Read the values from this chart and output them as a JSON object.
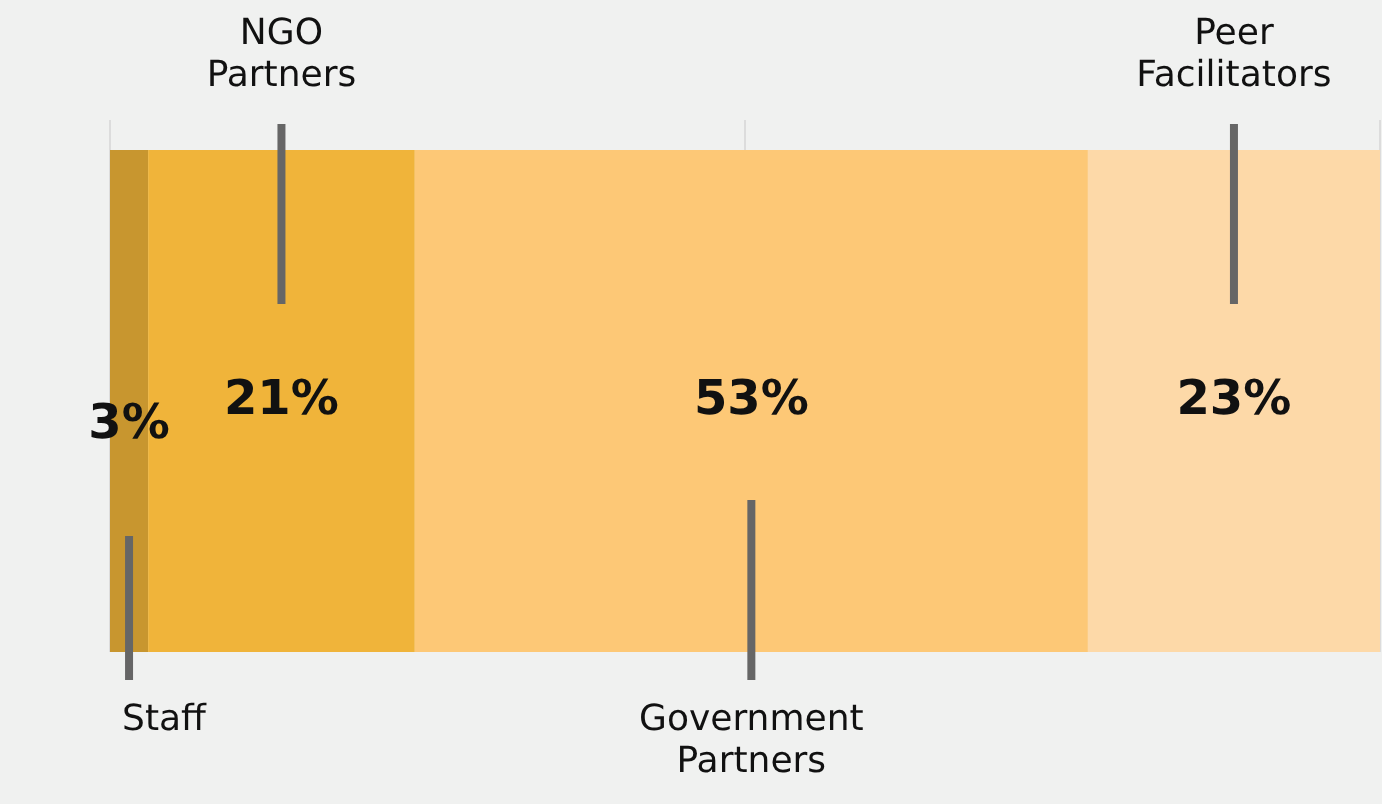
{
  "chart_data": {
    "type": "bar",
    "orientation": "horizontal",
    "stacked": true,
    "categories": [
      null
    ],
    "series": [
      {
        "name": "Staff",
        "color": "#c8962f",
        "values": [
          3
        ],
        "value_labels": [
          "3%"
        ]
      },
      {
        "name": "NGO Partners",
        "color": "#f0b43a",
        "values": [
          21
        ],
        "value_labels": [
          "21%"
        ]
      },
      {
        "name": "Government Partners",
        "color": "#fdc876",
        "values": [
          53
        ],
        "value_labels": [
          "53%"
        ]
      },
      {
        "name": "Peer Facilitators",
        "color": "#fdd9a8",
        "values": [
          23
        ],
        "value_labels": [
          "23%"
        ]
      }
    ],
    "xlim": [
      0,
      100
    ],
    "xticks": [
      {
        "value": 0,
        "label": null
      },
      {
        "value": 50,
        "label": null
      },
      {
        "value": 100,
        "label": null
      }
    ],
    "grid": "x"
  }
}
